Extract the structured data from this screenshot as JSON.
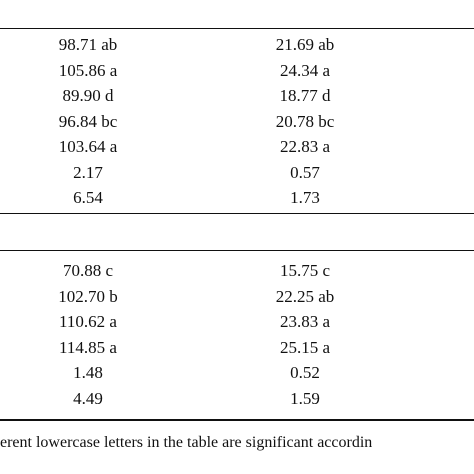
{
  "table": {
    "sections": [
      {
        "rows": [
          [
            "98.71 ab",
            "21.69 ab"
          ],
          [
            "105.86 a",
            "24.34 a"
          ],
          [
            "89.90 d",
            "18.77 d"
          ],
          [
            "96.84 bc",
            "20.78 bc"
          ],
          [
            "103.64 a",
            "22.83 a"
          ],
          [
            "2.17",
            "0.57"
          ],
          [
            "6.54",
            "1.73"
          ]
        ]
      },
      {
        "rows": [
          [
            "70.88 c",
            "15.75 c"
          ],
          [
            "102.70 b",
            "22.25 ab"
          ],
          [
            "110.62 a",
            "23.83 a"
          ],
          [
            "114.85 a",
            "25.15 a"
          ],
          [
            "1.48",
            "0.52"
          ],
          [
            "4.49",
            "1.59"
          ]
        ]
      }
    ],
    "footnote": "erent lowercase letters in the table are significant accordin"
  }
}
